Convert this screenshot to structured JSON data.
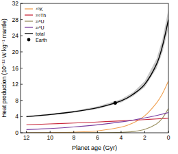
{
  "chart_data": {
    "type": "line",
    "x_label": "Planet age (Gyr)",
    "y_label": "Heat production (10⁻¹² W kg⁻¹ mantle)",
    "xlim": [
      12.5,
      0
    ],
    "xticks": [
      12,
      10,
      8,
      6,
      4,
      2,
      0
    ],
    "ylim": [
      0,
      32
    ],
    "yticks": [
      0,
      4,
      8,
      12,
      16,
      20,
      24,
      28,
      32
    ],
    "grid": false,
    "legend": "top-left",
    "series": [
      {
        "name": "⁴⁰K",
        "color": "#f0a050",
        "x": [
          12,
          10,
          8,
          6,
          4,
          3,
          2,
          1,
          0.5,
          0
        ],
        "values": [
          0.0,
          0.05,
          0.15,
          0.46,
          1.4,
          2.4,
          4.2,
          7.4,
          9.7,
          12.8
        ]
      },
      {
        "name": "²³²Th",
        "color": "#c8283c",
        "x": [
          12,
          10,
          8,
          6,
          4,
          3,
          2,
          1,
          0.5,
          0
        ],
        "values": [
          2.0,
          2.2,
          2.4,
          2.67,
          2.95,
          3.1,
          3.26,
          3.43,
          3.51,
          3.6
        ]
      },
      {
        "name": "²³⁵U",
        "color": "#9a9060",
        "x": [
          12,
          10,
          8,
          6,
          4,
          3,
          2,
          1,
          0.5,
          0
        ],
        "values": [
          0.0,
          0.0,
          0.0,
          0.02,
          0.11,
          0.31,
          0.83,
          2.2,
          3.66,
          6.0
        ]
      },
      {
        "name": "²³⁸U",
        "color": "#7b3fa0",
        "x": [
          12,
          10,
          8,
          6,
          4,
          3,
          2,
          1,
          0.5,
          0
        ],
        "values": [
          0.78,
          1.06,
          1.45,
          1.97,
          2.69,
          3.14,
          3.67,
          4.28,
          4.63,
          5.0
        ]
      },
      {
        "name": "total",
        "color": "#000000",
        "x": [
          12,
          10,
          8,
          6,
          4,
          3,
          2,
          1,
          0.5,
          0
        ],
        "values": [
          4.0,
          4.5,
          5.2,
          6.2,
          7.9,
          9.5,
          12.0,
          17.0,
          21.5,
          28.0
        ],
        "lower": [
          3.8,
          4.3,
          5.0,
          5.9,
          7.5,
          9.0,
          11.3,
          15.9,
          20.0,
          25.8
        ],
        "upper": [
          4.2,
          4.7,
          5.4,
          6.5,
          8.3,
          10.0,
          12.8,
          18.3,
          23.2,
          30.5
        ]
      },
      {
        "name": "Earth",
        "type": "scatter",
        "marker": "circle",
        "color": "#000000",
        "x": [
          4.5
        ],
        "values": [
          7.4
        ]
      }
    ]
  }
}
